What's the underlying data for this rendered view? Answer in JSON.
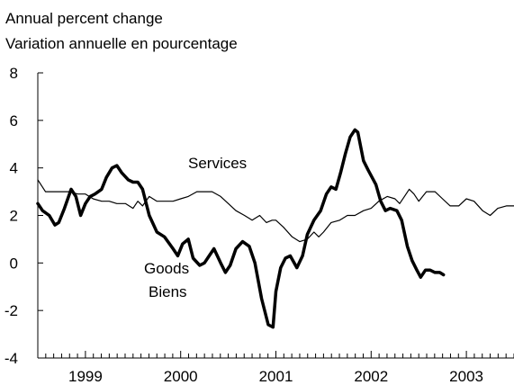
{
  "chart_data": {
    "type": "line",
    "title_line1": "Annual percent change",
    "title_line2": "Variation annuelle en pourcentage",
    "ylim": [
      -4,
      8
    ],
    "yticks": [
      -4,
      -2,
      0,
      2,
      4,
      6,
      8
    ],
    "ytick_labels": [
      "-4",
      "-2",
      "0",
      "2",
      "4",
      "6",
      "8"
    ],
    "xlim": [
      1998.5,
      2003.5
    ],
    "year_labels": [
      {
        "label": "1999",
        "x": 1999.0
      },
      {
        "label": "2000",
        "x": 2000.0
      },
      {
        "label": "2001",
        "x": 2001.0
      },
      {
        "label": "2002",
        "x": 2002.0
      },
      {
        "label": "2003",
        "x": 2003.0
      }
    ],
    "annotations": {
      "services": "Services",
      "goods_en": "Goods",
      "goods_fr": "Biens"
    },
    "series": [
      {
        "key": "services",
        "stroke_color": "#000000",
        "points": [
          [
            1998.5,
            3.5
          ],
          [
            1998.58,
            3.0
          ],
          [
            1998.67,
            3.0
          ],
          [
            1998.75,
            3.0
          ],
          [
            1998.83,
            3.0
          ],
          [
            1998.92,
            2.9
          ],
          [
            1999.0,
            2.9
          ],
          [
            1999.08,
            2.7
          ],
          [
            1999.17,
            2.6
          ],
          [
            1999.25,
            2.6
          ],
          [
            1999.33,
            2.5
          ],
          [
            1999.42,
            2.5
          ],
          [
            1999.5,
            2.3
          ],
          [
            1999.55,
            2.6
          ],
          [
            1999.6,
            2.4
          ],
          [
            1999.67,
            2.8
          ],
          [
            1999.75,
            2.6
          ],
          [
            1999.83,
            2.6
          ],
          [
            1999.92,
            2.6
          ],
          [
            2000.0,
            2.7
          ],
          [
            2000.08,
            2.8
          ],
          [
            2000.17,
            3.0
          ],
          [
            2000.25,
            3.0
          ],
          [
            2000.33,
            3.0
          ],
          [
            2000.42,
            2.8
          ],
          [
            2000.5,
            2.5
          ],
          [
            2000.58,
            2.2
          ],
          [
            2000.67,
            2.0
          ],
          [
            2000.75,
            1.8
          ],
          [
            2000.83,
            2.0
          ],
          [
            2000.9,
            1.7
          ],
          [
            2000.96,
            1.8
          ],
          [
            2001.0,
            1.8
          ],
          [
            2001.08,
            1.5
          ],
          [
            2001.17,
            1.1
          ],
          [
            2001.25,
            0.9
          ],
          [
            2001.33,
            1.0
          ],
          [
            2001.4,
            1.3
          ],
          [
            2001.45,
            1.1
          ],
          [
            2001.5,
            1.3
          ],
          [
            2001.58,
            1.7
          ],
          [
            2001.67,
            1.8
          ],
          [
            2001.75,
            2.0
          ],
          [
            2001.83,
            2.0
          ],
          [
            2001.92,
            2.2
          ],
          [
            2002.0,
            2.3
          ],
          [
            2002.08,
            2.6
          ],
          [
            2002.17,
            2.8
          ],
          [
            2002.25,
            2.7
          ],
          [
            2002.3,
            2.5
          ],
          [
            2002.35,
            2.8
          ],
          [
            2002.4,
            3.1
          ],
          [
            2002.45,
            2.9
          ],
          [
            2002.5,
            2.6
          ],
          [
            2002.58,
            3.0
          ],
          [
            2002.67,
            3.0
          ],
          [
            2002.75,
            2.7
          ],
          [
            2002.83,
            2.4
          ],
          [
            2002.92,
            2.4
          ],
          [
            2003.0,
            2.7
          ],
          [
            2003.08,
            2.6
          ],
          [
            2003.17,
            2.2
          ],
          [
            2003.25,
            2.0
          ],
          [
            2003.33,
            2.3
          ],
          [
            2003.42,
            2.4
          ],
          [
            2003.5,
            2.4
          ]
        ]
      },
      {
        "key": "goods",
        "stroke_color": "#000000",
        "points": [
          [
            1998.5,
            2.5
          ],
          [
            1998.55,
            2.2
          ],
          [
            1998.62,
            2.0
          ],
          [
            1998.68,
            1.6
          ],
          [
            1998.72,
            1.7
          ],
          [
            1998.78,
            2.3
          ],
          [
            1998.85,
            3.1
          ],
          [
            1998.9,
            2.8
          ],
          [
            1998.95,
            2.0
          ],
          [
            1999.0,
            2.5
          ],
          [
            1999.05,
            2.8
          ],
          [
            1999.1,
            2.9
          ],
          [
            1999.17,
            3.1
          ],
          [
            1999.22,
            3.6
          ],
          [
            1999.28,
            4.0
          ],
          [
            1999.33,
            4.1
          ],
          [
            1999.38,
            3.8
          ],
          [
            1999.45,
            3.5
          ],
          [
            1999.5,
            3.4
          ],
          [
            1999.55,
            3.4
          ],
          [
            1999.6,
            3.1
          ],
          [
            1999.67,
            2.0
          ],
          [
            1999.75,
            1.3
          ],
          [
            1999.83,
            1.1
          ],
          [
            1999.92,
            0.6
          ],
          [
            1999.97,
            0.3
          ],
          [
            2000.02,
            0.8
          ],
          [
            2000.08,
            1.0
          ],
          [
            2000.13,
            0.2
          ],
          [
            2000.2,
            -0.1
          ],
          [
            2000.25,
            0.0
          ],
          [
            2000.3,
            0.3
          ],
          [
            2000.35,
            0.6
          ],
          [
            2000.42,
            0.0
          ],
          [
            2000.47,
            -0.4
          ],
          [
            2000.52,
            -0.1
          ],
          [
            2000.58,
            0.6
          ],
          [
            2000.65,
            0.9
          ],
          [
            2000.72,
            0.7
          ],
          [
            2000.78,
            0.0
          ],
          [
            2000.85,
            -1.5
          ],
          [
            2000.92,
            -2.6
          ],
          [
            2000.97,
            -2.7
          ],
          [
            2001.0,
            -1.2
          ],
          [
            2001.05,
            -0.2
          ],
          [
            2001.1,
            0.2
          ],
          [
            2001.15,
            0.3
          ],
          [
            2001.22,
            -0.2
          ],
          [
            2001.28,
            0.3
          ],
          [
            2001.33,
            1.2
          ],
          [
            2001.4,
            1.8
          ],
          [
            2001.47,
            2.2
          ],
          [
            2001.53,
            2.9
          ],
          [
            2001.58,
            3.2
          ],
          [
            2001.63,
            3.1
          ],
          [
            2001.68,
            3.8
          ],
          [
            2001.73,
            4.6
          ],
          [
            2001.78,
            5.3
          ],
          [
            2001.83,
            5.6
          ],
          [
            2001.86,
            5.5
          ],
          [
            2001.92,
            4.3
          ],
          [
            2001.97,
            3.9
          ],
          [
            2002.05,
            3.3
          ],
          [
            2002.1,
            2.6
          ],
          [
            2002.15,
            2.2
          ],
          [
            2002.2,
            2.3
          ],
          [
            2002.27,
            2.2
          ],
          [
            2002.32,
            1.8
          ],
          [
            2002.38,
            0.7
          ],
          [
            2002.43,
            0.1
          ],
          [
            2002.48,
            -0.3
          ],
          [
            2002.52,
            -0.6
          ],
          [
            2002.57,
            -0.3
          ],
          [
            2002.62,
            -0.3
          ],
          [
            2002.67,
            -0.4
          ],
          [
            2002.72,
            -0.4
          ],
          [
            2002.76,
            -0.5
          ]
        ]
      }
    ]
  }
}
